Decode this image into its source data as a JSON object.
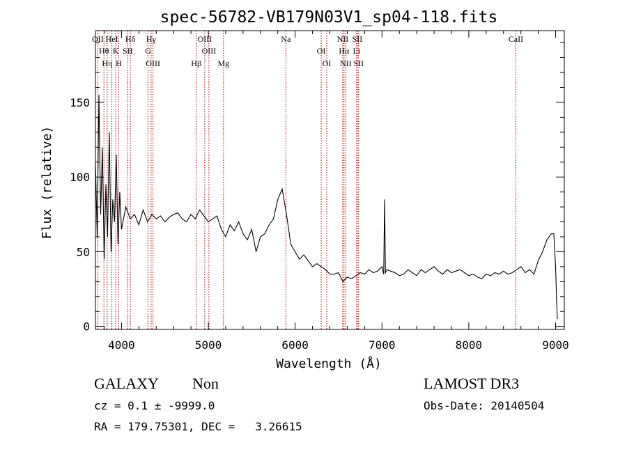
{
  "chart_data": {
    "type": "line",
    "title": "spec-56782-VB179N03V1_sp04-118.fits",
    "xlabel": "Wavelength (Å)",
    "ylabel": "Flux (relative)",
    "xlim": [
      3700,
      9100
    ],
    "ylim": [
      -2,
      198
    ],
    "x_ticks": [
      4000,
      5000,
      6000,
      7000,
      8000,
      9000
    ],
    "y_ticks": [
      0,
      50,
      100,
      150
    ],
    "grid": false,
    "line_color": "#000000",
    "line_marker_color": "#b00000",
    "spectrum": {
      "x": [
        3700,
        3720,
        3740,
        3760,
        3780,
        3800,
        3820,
        3840,
        3860,
        3880,
        3900,
        3920,
        3940,
        3960,
        3980,
        4000,
        4050,
        4100,
        4150,
        4200,
        4250,
        4300,
        4350,
        4400,
        4450,
        4500,
        4550,
        4600,
        4650,
        4700,
        4750,
        4800,
        4850,
        4900,
        4950,
        5000,
        5050,
        5100,
        5150,
        5200,
        5250,
        5300,
        5350,
        5400,
        5450,
        5500,
        5550,
        5600,
        5650,
        5700,
        5750,
        5800,
        5850,
        5900,
        5950,
        6000,
        6050,
        6100,
        6150,
        6200,
        6250,
        6300,
        6350,
        6400,
        6450,
        6500,
        6550,
        6600,
        6650,
        6700,
        6750,
        6800,
        6850,
        6900,
        6950,
        7000,
        7020,
        7030,
        7040,
        7060,
        7100,
        7150,
        7200,
        7250,
        7300,
        7350,
        7400,
        7450,
        7500,
        7550,
        7600,
        7650,
        7700,
        7750,
        7800,
        7850,
        7900,
        7950,
        8000,
        8050,
        8100,
        8150,
        8200,
        8250,
        8300,
        8350,
        8400,
        8450,
        8500,
        8550,
        8600,
        8650,
        8700,
        8750,
        8800,
        8850,
        8900,
        8950,
        8980,
        9000,
        9010,
        9020
      ],
      "y": [
        110,
        60,
        155,
        75,
        120,
        45,
        95,
        60,
        130,
        50,
        85,
        70,
        115,
        55,
        90,
        65,
        80,
        72,
        75,
        68,
        78,
        70,
        75,
        72,
        74,
        70,
        73,
        75,
        76,
        72,
        70,
        75,
        72,
        78,
        74,
        70,
        72,
        74,
        65,
        60,
        68,
        64,
        70,
        62,
        58,
        65,
        50,
        60,
        62,
        68,
        72,
        85,
        92,
        75,
        55,
        50,
        45,
        48,
        44,
        40,
        42,
        40,
        38,
        35,
        35,
        36,
        30,
        33,
        32,
        34,
        36,
        35,
        38,
        36,
        37,
        40,
        35,
        85,
        36,
        38,
        37,
        36,
        34,
        35,
        38,
        36,
        34,
        38,
        36,
        38,
        40,
        37,
        35,
        38,
        36,
        37,
        38,
        36,
        34,
        35,
        33,
        32,
        35,
        34,
        36,
        35,
        37,
        35,
        36,
        38,
        40,
        36,
        38,
        35,
        44,
        50,
        58,
        62,
        62,
        40,
        20,
        5
      ],
      "unit": "relative flux"
    },
    "lines": [
      {
        "label": "OII",
        "wavelength": 3727
      },
      {
        "label": "Hθ",
        "wavelength": 3798
      },
      {
        "label": "Hη",
        "wavelength": 3835
      },
      {
        "label": "HeI",
        "wavelength": 3889
      },
      {
        "label": "K",
        "wavelength": 3934
      },
      {
        "label": "H",
        "wavelength": 3968
      },
      {
        "label": "Hδ",
        "wavelength": 4102
      },
      {
        "label": "SII",
        "wavelength": 4072
      },
      {
        "label": "OIII",
        "wavelength": 4363
      },
      {
        "label": "Hγ",
        "wavelength": 4341
      },
      {
        "label": "G",
        "wavelength": 4304
      },
      {
        "label": "Hβ",
        "wavelength": 4861
      },
      {
        "label": "OIII",
        "wavelength": 4959
      },
      {
        "label": "OIII",
        "wavelength": 5007
      },
      {
        "label": "Mg",
        "wavelength": 5175
      },
      {
        "label": "Na",
        "wavelength": 5894
      },
      {
        "label": "OI",
        "wavelength": 6300
      },
      {
        "label": "OI",
        "wavelength": 6364
      },
      {
        "label": "NII",
        "wavelength": 6548
      },
      {
        "label": "Hα",
        "wavelength": 6563
      },
      {
        "label": "NII",
        "wavelength": 6583
      },
      {
        "label": "SII",
        "wavelength": 6716
      },
      {
        "label": "Li",
        "wavelength": 6708
      },
      {
        "label": "SII",
        "wavelength": 6731
      },
      {
        "label": "CaII",
        "wavelength": 8542
      }
    ]
  },
  "info": {
    "object_class": "GALAXY",
    "subclass": "Non",
    "survey": "LAMOST DR3",
    "redshift_line": "cz = 0.1 ± -9999.0",
    "obs_date_line": "Obs-Date: 20140504",
    "coords_line": "RA = 179.75301, DEC =   3.26615"
  }
}
